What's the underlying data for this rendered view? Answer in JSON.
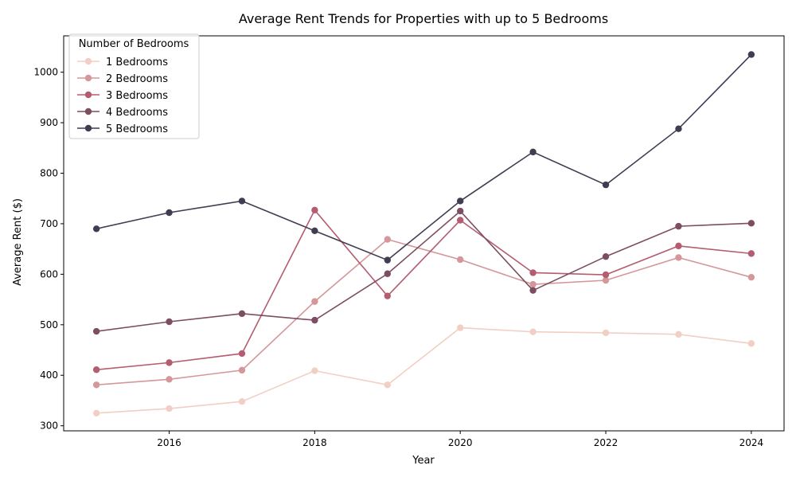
{
  "chart_data": {
    "type": "line",
    "title": "Average Rent Trends for Properties with up to 5 Bedrooms",
    "xlabel": "Year",
    "ylabel": "Average Rent ($)",
    "x": [
      2015,
      2016,
      2017,
      2018,
      2019,
      2020,
      2021,
      2022,
      2023,
      2024
    ],
    "xlim": [
      2014.55,
      2024.45
    ],
    "ylim": [
      290,
      1072
    ],
    "xticks": [
      2016,
      2018,
      2020,
      2022,
      2024
    ],
    "yticks": [
      300,
      400,
      500,
      600,
      700,
      800,
      900,
      1000
    ],
    "grid": false,
    "legend": {
      "title": "Number of Bedrooms",
      "placement": "upper-left"
    },
    "series": [
      {
        "name": "1 Bedrooms",
        "color": "#f2cfc4",
        "values": [
          325,
          334,
          348,
          409,
          381,
          494,
          486,
          484,
          481,
          463
        ]
      },
      {
        "name": "2 Bedrooms",
        "color": "#d4979a",
        "values": [
          381,
          392,
          410,
          546,
          669,
          629,
          580,
          588,
          633,
          594
        ]
      },
      {
        "name": "3 Bedrooms",
        "color": "#b55d70",
        "values": [
          411,
          425,
          443,
          727,
          557,
          707,
          603,
          599,
          656,
          641
        ]
      },
      {
        "name": "4 Bedrooms",
        "color": "#7d4d61",
        "values": [
          487,
          506,
          522,
          509,
          601,
          725,
          568,
          635,
          695,
          701
        ]
      },
      {
        "name": "5 Bedrooms",
        "color": "#423c52",
        "values": [
          690,
          722,
          745,
          686,
          628,
          745,
          842,
          777,
          888,
          1035
        ]
      }
    ]
  }
}
